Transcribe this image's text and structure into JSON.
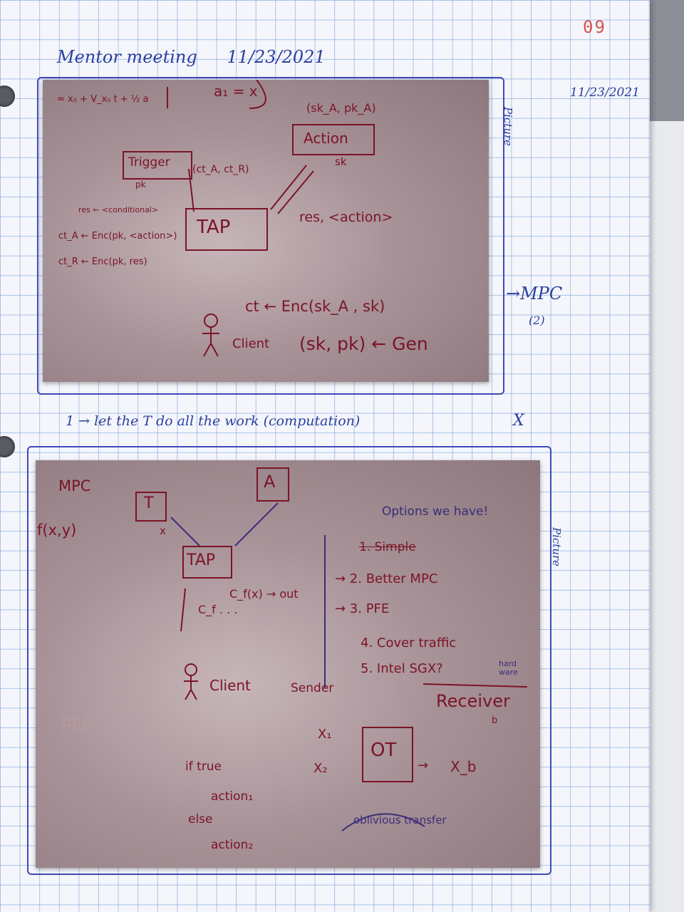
{
  "page": {
    "number": "09",
    "title": "Mentor meeting",
    "title_date": "11/23/2021",
    "side_date": "11/23/2021",
    "side_note_1": "Picture",
    "side_note_2": "Picture",
    "mpc_note": "→MPC",
    "mpc_note_sub": "(2)",
    "middle_note": "1 → let the T do all the work (computation)",
    "middle_mark": "X"
  },
  "photo_top": {
    "top_formula": "= x₀ + V_x₀ t + ½ a",
    "top_formula_2": "a₁ = x",
    "action_keys": "(sk_A, pk_A)",
    "action_label": "Action",
    "action_sub": "sk",
    "trigger_label": "Trigger",
    "trigger_sub": "pk",
    "ct_pair": "(ct_A, ct_R)",
    "res_line": "res ← <conditional>",
    "enc_action": "ct_A ← Enc(pk, <action>)",
    "enc_res": "ct_R ← Enc(pk, res)",
    "tap_label": "TAP",
    "res_action": "res, <action>",
    "ct_enc": "ct ← Enc(sk_A , sk)",
    "client_label": "Client",
    "keygen": "(sk, pk) ← Gen"
  },
  "photo_bottom": {
    "mpc_label": "MPC",
    "fxy": "f(x,y)",
    "t_label": "T",
    "a_label": "A",
    "x_label": "x",
    "tap_label": "TAP",
    "cf_out": "C_f(x) → out",
    "cf_dots": "C_f . . .",
    "client_label": "Client",
    "sender_label": "Sender",
    "options_title": "Options we have!",
    "option_1": "1. Simple",
    "option_2": "→ 2. Better MPC",
    "option_3": "→ 3. PFE",
    "option_4": "4. Cover traffic",
    "option_5": "5. Intel SGX?",
    "option_5_note": "hard ware",
    "receiver_label": "Receiver",
    "receiver_sub": "b",
    "pfe_label": "PFE",
    "x1_label": "X₁",
    "x2_label": "X₂",
    "ot_label": "OT",
    "xb_label": "X_b",
    "ot_caption": "oblivious transfer",
    "if_line1": "if true",
    "if_line2": "action₁",
    "if_line3": "else",
    "if_line4": "action₂"
  }
}
